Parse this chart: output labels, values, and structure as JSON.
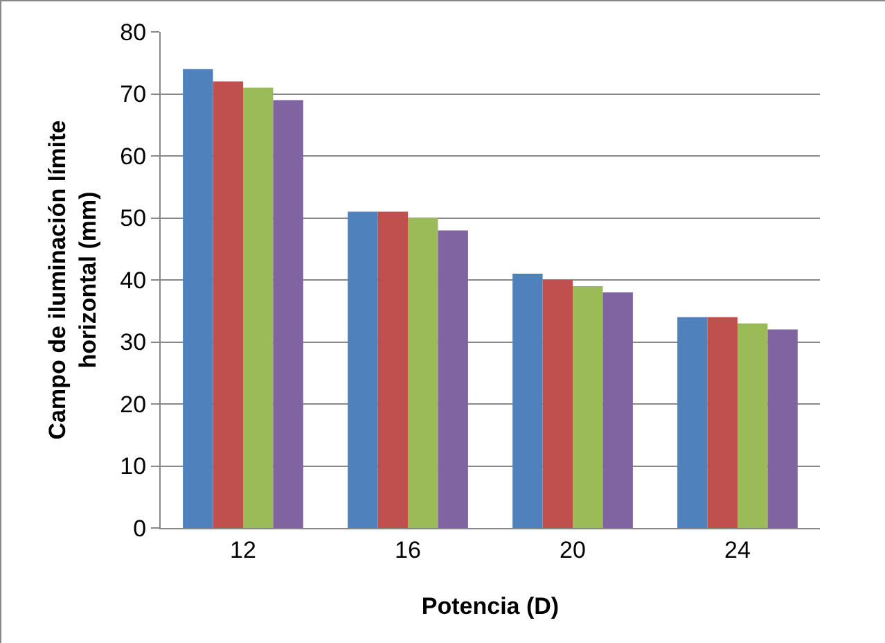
{
  "chart_data": {
    "type": "bar",
    "xlabel": "Potencia (D)",
    "ylabel": "Campo de iluminación límite horizontal (mm)",
    "categories": [
      "12",
      "16",
      "20",
      "24"
    ],
    "series": [
      {
        "color": "#4f81bd",
        "values": [
          74,
          51,
          41,
          34
        ]
      },
      {
        "color": "#c0504d",
        "values": [
          72,
          51,
          40,
          34
        ]
      },
      {
        "color": "#9bbb59",
        "values": [
          71,
          50,
          39,
          33
        ]
      },
      {
        "color": "#8064a2",
        "values": [
          69,
          48,
          38,
          32
        ]
      }
    ],
    "ylim": [
      0,
      80
    ],
    "yticks": [
      0,
      10,
      20,
      30,
      40,
      50,
      60,
      70,
      80
    ],
    "grid": "y"
  }
}
